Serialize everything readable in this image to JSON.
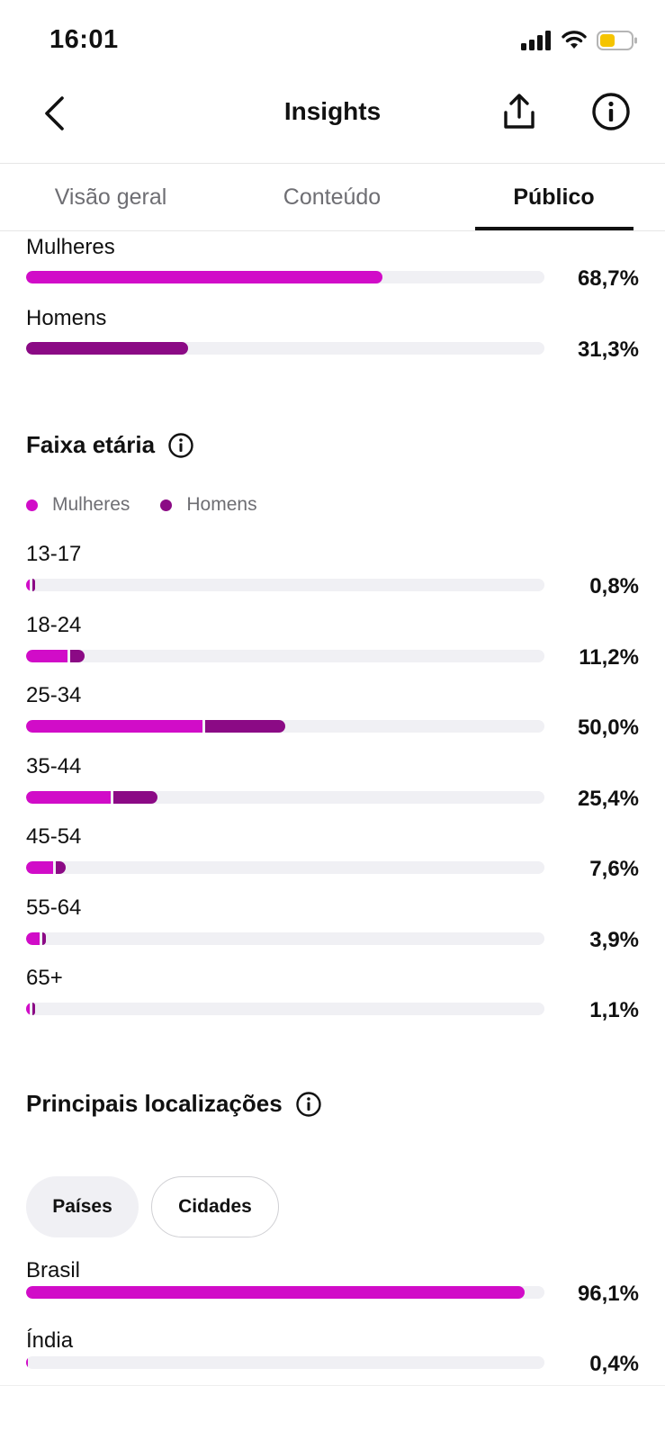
{
  "status_bar": {
    "time": "16:01"
  },
  "header": {
    "title": "Insights"
  },
  "tabs": [
    {
      "label": "Visão geral",
      "active": false
    },
    {
      "label": "Conteúdo",
      "active": false
    },
    {
      "label": "Público",
      "active": true
    }
  ],
  "gender": {
    "items": [
      {
        "label": "Mulheres",
        "value": "68,7%",
        "fraction": 0.687,
        "color": "#d10cc8"
      },
      {
        "label": "Homens",
        "value": "31,3%",
        "fraction": 0.313,
        "color": "#8b0a85"
      }
    ]
  },
  "age": {
    "title": "Faixa etária",
    "legend": [
      {
        "label": "Mulheres",
        "color": "#d10cc8"
      },
      {
        "label": "Homens",
        "color": "#8b0a85"
      }
    ],
    "rows": [
      {
        "label": "13-17",
        "value": "0,8%",
        "total": 0.008,
        "women_share": 0.6
      },
      {
        "label": "18-24",
        "value": "11,2%",
        "total": 0.112,
        "women_share": 0.72
      },
      {
        "label": "25-34",
        "value": "50,0%",
        "total": 0.5,
        "women_share": 0.68
      },
      {
        "label": "35-44",
        "value": "25,4%",
        "total": 0.254,
        "women_share": 0.64
      },
      {
        "label": "45-54",
        "value": "7,6%",
        "total": 0.076,
        "women_share": 0.68
      },
      {
        "label": "55-64",
        "value": "3,9%",
        "total": 0.039,
        "women_share": 0.68
      },
      {
        "label": "65+",
        "value": "1,1%",
        "total": 0.011,
        "women_share": 0.6
      }
    ]
  },
  "locations": {
    "title": "Principais localizações",
    "filters": [
      {
        "label": "Países",
        "selected": true
      },
      {
        "label": "Cidades",
        "selected": false
      }
    ],
    "rows": [
      {
        "label": "Brasil",
        "value": "96,1%",
        "fraction": 0.961
      },
      {
        "label": "Índia",
        "value": "0,4%",
        "fraction": 0.004
      }
    ]
  },
  "colors": {
    "women": "#d10cc8",
    "men": "#8b0a85",
    "track": "#f0f0f4"
  }
}
